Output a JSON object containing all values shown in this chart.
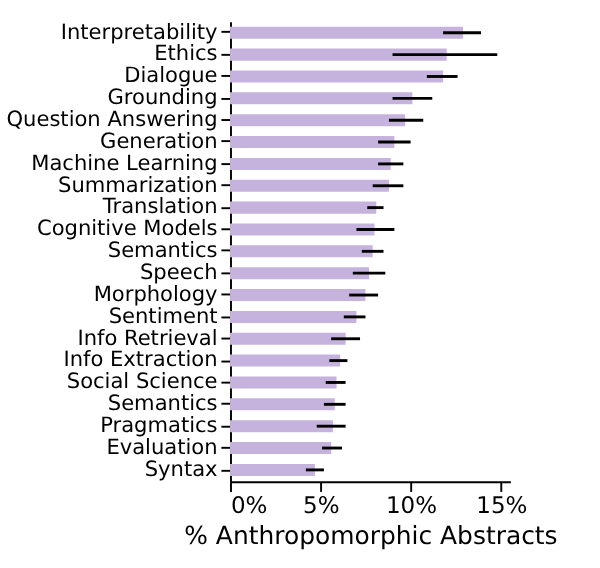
{
  "chart_data": {
    "type": "bar",
    "orientation": "horizontal",
    "xlabel": "% Anthropomorphic Abstracts",
    "categories": [
      "Interpretability",
      "Ethics",
      "Dialogue",
      "Grounding",
      "Question Answering",
      "Generation",
      "Machine Learning",
      "Summarization",
      "Translation",
      "Cognitive Models",
      "Semantics",
      "Speech",
      "Morphology",
      "Sentiment",
      "Info Retrieval",
      "Info Extraction",
      "Social Science",
      "Semantics",
      "Pragmatics",
      "Evaluation",
      "Syntax"
    ],
    "values": [
      12.9,
      12.0,
      11.8,
      10.1,
      9.7,
      9.1,
      8.9,
      8.8,
      8.1,
      8.0,
      7.9,
      7.7,
      7.5,
      7.0,
      6.4,
      6.1,
      5.9,
      5.8,
      5.7,
      5.6,
      4.7
    ],
    "errors": [
      [
        11.8,
        13.9
      ],
      [
        9.0,
        14.8
      ],
      [
        10.9,
        12.6
      ],
      [
        9.0,
        11.2
      ],
      [
        8.8,
        10.7
      ],
      [
        8.2,
        10.0
      ],
      [
        8.2,
        9.6
      ],
      [
        7.9,
        9.6
      ],
      [
        7.6,
        8.5
      ],
      [
        7.0,
        9.1
      ],
      [
        7.3,
        8.5
      ],
      [
        6.8,
        8.6
      ],
      [
        6.6,
        8.2
      ],
      [
        6.3,
        7.5
      ],
      [
        5.6,
        7.2
      ],
      [
        5.5,
        6.5
      ],
      [
        5.3,
        6.4
      ],
      [
        5.2,
        6.4
      ],
      [
        4.8,
        6.4
      ],
      [
        5.1,
        6.2
      ],
      [
        4.2,
        5.2
      ]
    ],
    "color": "#c6b3dd",
    "xlim": [
      0,
      15.5
    ],
    "xticks": [
      {
        "value": 0,
        "label": "0%"
      },
      {
        "value": 5,
        "label": "5%"
      },
      {
        "value": 10,
        "label": "10%"
      },
      {
        "value": 15,
        "label": "15%"
      }
    ],
    "grid": false
  }
}
